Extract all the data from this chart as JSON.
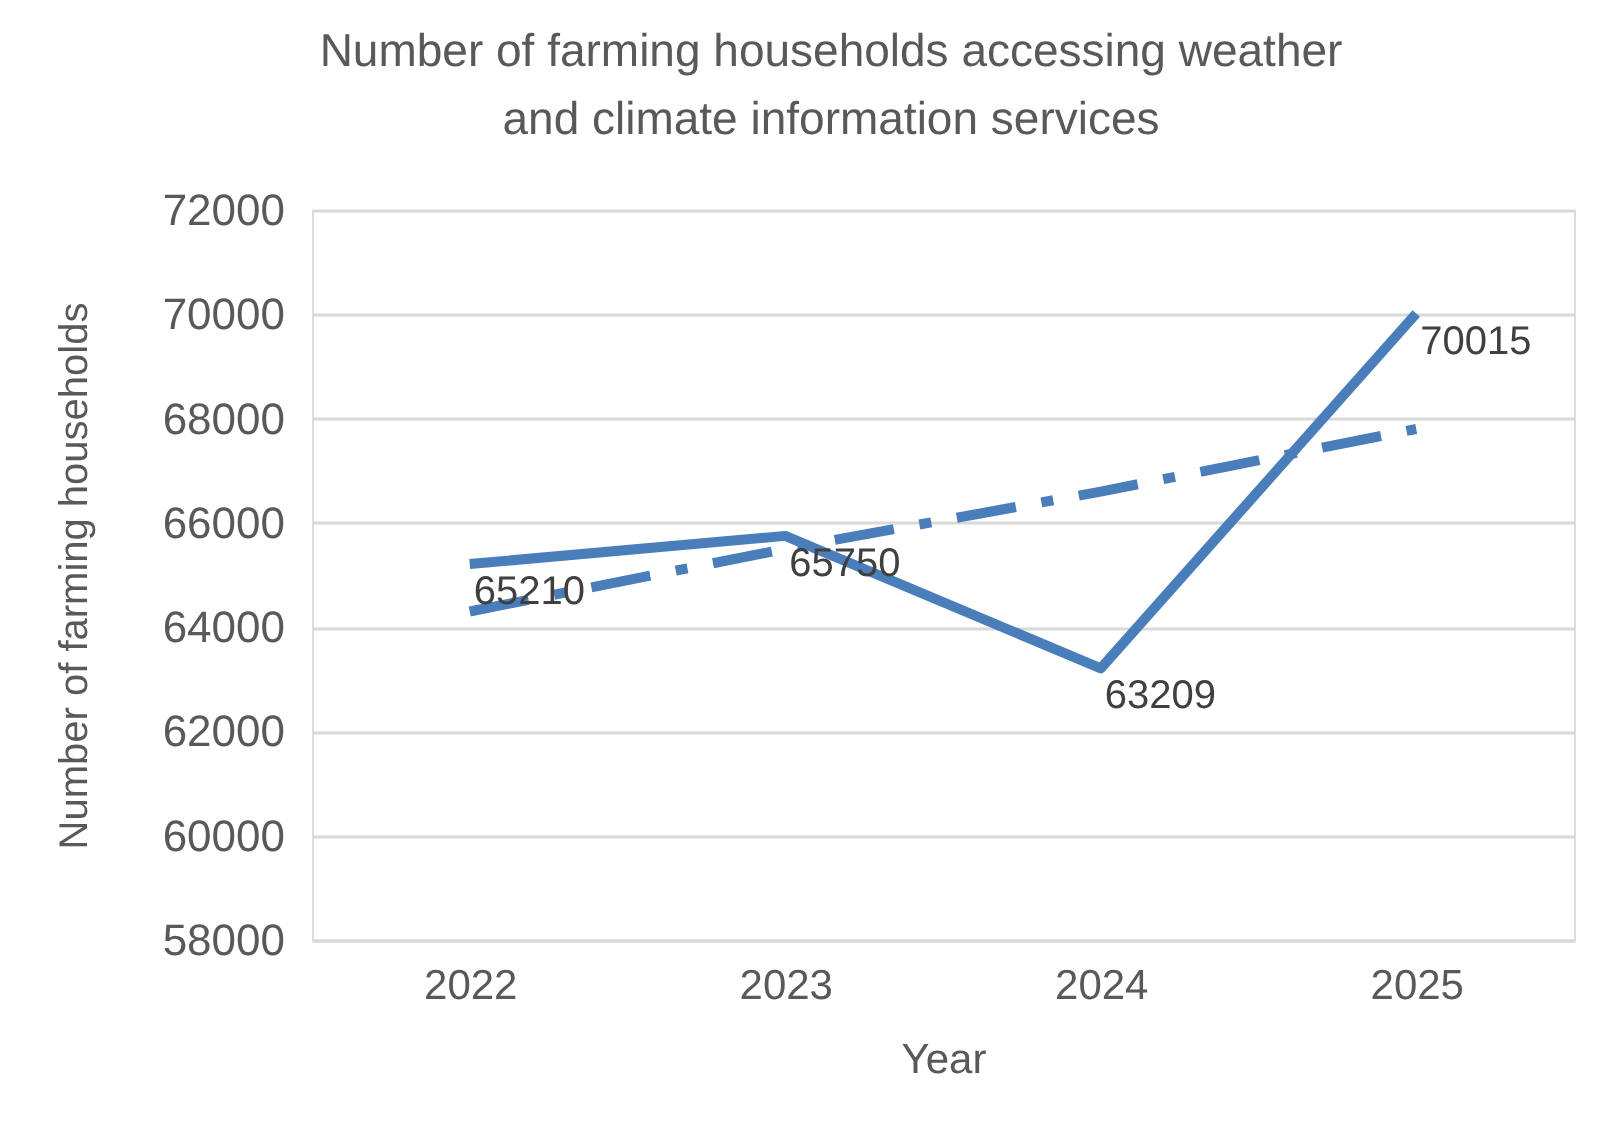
{
  "chart_data": {
    "type": "line",
    "title": "Number of farming households accessing weather and climate information services",
    "xlabel": "Year",
    "ylabel": "Number of farming households",
    "categories": [
      "2022",
      "2023",
      "2024",
      "2025"
    ],
    "series": [
      {
        "color": "#4a7ebb",
        "values": [
          65210,
          65750,
          63209,
          70015
        ],
        "value_labels": [
          "65210",
          "65750",
          "63209",
          "70015"
        ],
        "line_style": "solid"
      },
      {
        "type": "line",
        "color": "#4a7ebb",
        "values": [
          64300,
          65500,
          66600,
          67800
        ],
        "line_style": "dashed"
      }
    ],
    "ylim": [
      58000,
      72000
    ],
    "yticks": [
      58000,
      60000,
      62000,
      64000,
      66000,
      68000,
      70000,
      72000
    ],
    "grid": "y",
    "marker": "none"
  }
}
